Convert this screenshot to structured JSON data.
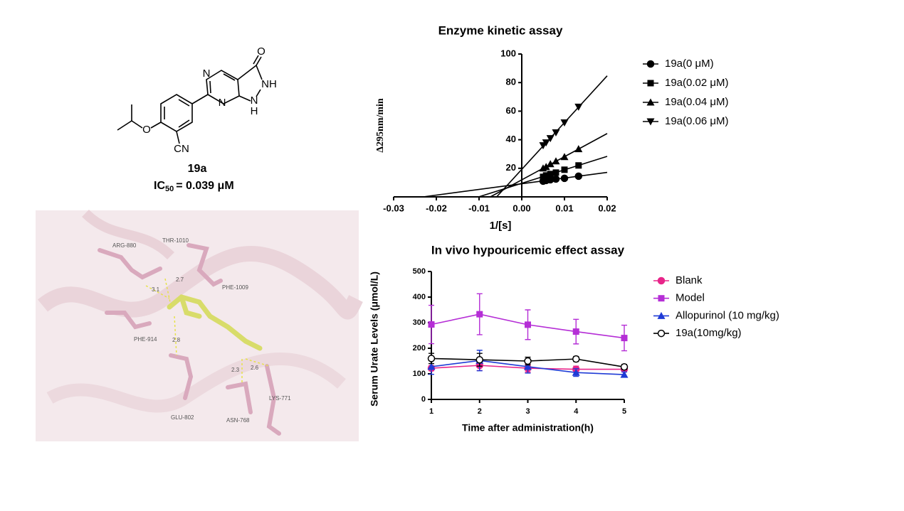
{
  "chart_data": [
    {
      "type": "scatter",
      "title": "Enzyme kinetic assay",
      "x_label": "1/[s]",
      "y_label": "Δ295nm/min",
      "xlim": [
        -0.03,
        0.02
      ],
      "xticks": [
        -0.03,
        -0.02,
        -0.01,
        {
          "value": 0,
          "label": "0.00"
        },
        0.01,
        0.02
      ],
      "ylim": [
        0,
        100
      ],
      "yticks": [
        20,
        40,
        60,
        80,
        100
      ],
      "fit": "linear",
      "grid": false,
      "legend": "right",
      "series": [
        {
          "name": "19a(0 μM)",
          "color": "#000000",
          "marker": "circle",
          "x": [
            0.005,
            0.0057,
            0.0067,
            0.008,
            0.01,
            0.0133
          ],
          "values": [
            11,
            11.5,
            12,
            12.5,
            13,
            14.5
          ]
        },
        {
          "name": "19a(0.02 μM)",
          "color": "#000000",
          "marker": "square",
          "x": [
            0.005,
            0.0057,
            0.0067,
            0.008,
            0.01,
            0.0133
          ],
          "values": [
            14,
            15,
            16,
            17,
            19,
            22
          ]
        },
        {
          "name": "19a(0.04 μM)",
          "color": "#000000",
          "marker": "triangle-up",
          "x": [
            0.005,
            0.0057,
            0.0067,
            0.008,
            0.01,
            0.0133
          ],
          "values": [
            20,
            21,
            23,
            25,
            28,
            33.5
          ]
        },
        {
          "name": "19a(0.06 μM)",
          "color": "#000000",
          "marker": "triangle-down",
          "x": [
            0.005,
            0.0057,
            0.0067,
            0.008,
            0.01,
            0.0133
          ],
          "values": [
            36,
            38,
            41,
            45,
            52,
            63
          ]
        }
      ]
    },
    {
      "type": "line",
      "title": "In vivo hypouricemic effect assay",
      "x_label": "Time after administration(h)",
      "y_label": "Serum Urate Levels (μmol/L)",
      "x": [
        1,
        2,
        3,
        4,
        5
      ],
      "xlim": [
        1,
        5
      ],
      "xticks": [
        1,
        2,
        3,
        4,
        5
      ],
      "ylim": [
        0,
        500
      ],
      "yticks": [
        0,
        100,
        200,
        300,
        400,
        500
      ],
      "grid": false,
      "legend": "right",
      "series": [
        {
          "name": "Blank",
          "color": "#e8258a",
          "marker": "circle",
          "values": [
            122,
            133,
            122,
            118,
            118
          ],
          "errors": [
            10,
            20,
            15,
            12,
            10
          ]
        },
        {
          "name": "Model",
          "color": "#b52ed6",
          "marker": "square",
          "values": [
            293,
            333,
            292,
            265,
            240
          ],
          "errors": [
            75,
            80,
            58,
            48,
            50
          ]
        },
        {
          "name": "Allopurinol (10 mg/kg)",
          "color": "#1f3bd6",
          "marker": "triangle-up",
          "values": [
            128,
            152,
            128,
            105,
            97
          ],
          "errors": [
            30,
            40,
            25,
            15,
            10
          ]
        },
        {
          "name": "19a(10mg/kg)",
          "color": "#000000",
          "marker": "open-circle",
          "values": [
            160,
            155,
            150,
            158,
            127
          ],
          "errors": [
            20,
            25,
            15,
            10,
            10
          ]
        }
      ]
    }
  ],
  "compound": {
    "name": "19a",
    "ic50_label": "IC",
    "ic50_subscript": "50",
    "ic50_value": "= 0.039 μM",
    "atoms": [
      "O",
      "N",
      "NH",
      "N",
      "N",
      "H",
      "O",
      "CN"
    ]
  },
  "docking": {
    "residues": [
      "ARG-880",
      "THR-1010",
      "PHE-1009",
      "PHE-914",
      "GLU-802",
      "ASN-768",
      "LYS-771"
    ],
    "distances": [
      "3.1",
      "2.7",
      "2.8",
      "2.3",
      "2.6"
    ]
  }
}
